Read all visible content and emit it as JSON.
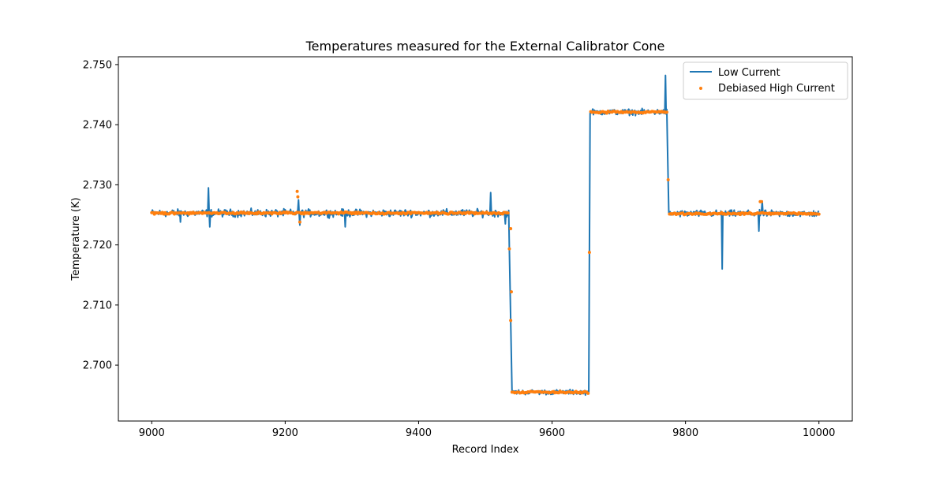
{
  "chart_data": {
    "type": "line",
    "title": "Temperatures measured for the External Calibrator Cone",
    "xlabel": "Record Index",
    "ylabel": "Temperature (K)",
    "xlim": [
      8950,
      10050
    ],
    "ylim": [
      2.6907,
      2.7513
    ],
    "xticks": [
      9000,
      9200,
      9400,
      9600,
      9800,
      10000
    ],
    "xtick_labels": [
      "9000",
      "9200",
      "9400",
      "9600",
      "9800",
      "10000"
    ],
    "yticks": [
      2.7,
      2.71,
      2.72,
      2.73,
      2.74,
      2.75
    ],
    "ytick_labels": [
      "2.700",
      "2.710",
      "2.720",
      "2.730",
      "2.740",
      "2.750"
    ],
    "grid": false,
    "legend_position": "top-right",
    "series": [
      {
        "name": "Low Current",
        "style": "line",
        "color": "#1f77b4",
        "generator": {
          "x_start": 9000,
          "x_end": 10000,
          "segments": [
            {
              "x0": 9000,
              "x1": 9535,
              "level": 2.7253,
              "noise": 0.0009
            },
            {
              "x0": 9535,
              "x1": 9540,
              "level_from": 2.7253,
              "level_to": 2.6955
            },
            {
              "x0": 9540,
              "x1": 9655,
              "level": 2.6955,
              "noise": 0.0006
            },
            {
              "x0": 9655,
              "x1": 9657,
              "level_from": 2.6955,
              "level_to": 2.742
            },
            {
              "x0": 9657,
              "x1": 9772,
              "level": 2.7421,
              "noise": 0.0007
            },
            {
              "x0": 9772,
              "x1": 9775,
              "level_from": 2.7421,
              "level_to": 2.7252
            },
            {
              "x0": 9775,
              "x1": 10000,
              "level": 2.7252,
              "noise": 0.0008
            }
          ],
          "spikes": [
            {
              "x": 9043,
              "y": 2.7238
            },
            {
              "x": 9085,
              "y": 2.7295
            },
            {
              "x": 9087,
              "y": 2.723
            },
            {
              "x": 9220,
              "y": 2.7275
            },
            {
              "x": 9222,
              "y": 2.7233
            },
            {
              "x": 9290,
              "y": 2.723
            },
            {
              "x": 9508,
              "y": 2.7287
            },
            {
              "x": 9530,
              "y": 2.7235
            },
            {
              "x": 9770,
              "y": 2.7482
            },
            {
              "x": 9855,
              "y": 2.716
            },
            {
              "x": 9910,
              "y": 2.7223
            },
            {
              "x": 9915,
              "y": 2.7273
            }
          ]
        }
      },
      {
        "name": "Debiased High Current",
        "style": "scatter",
        "color": "#ff7f0e",
        "generator": {
          "x_start": 9000,
          "x_end": 10000,
          "step": 2,
          "segments": [
            {
              "x0": 9000,
              "x1": 9535,
              "level": 2.7253,
              "noise": 0.0002
            },
            {
              "x0": 9535,
              "x1": 9540,
              "level_from": 2.7253,
              "level_to": 2.6955
            },
            {
              "x0": 9540,
              "x1": 9655,
              "level": 2.6955,
              "noise": 0.0002
            },
            {
              "x0": 9655,
              "x1": 9657,
              "level_from": 2.6955,
              "level_to": 2.742
            },
            {
              "x0": 9657,
              "x1": 9772,
              "level": 2.7421,
              "noise": 0.0002
            },
            {
              "x0": 9772,
              "x1": 9775,
              "level_from": 2.7421,
              "level_to": 2.7252
            },
            {
              "x0": 9775,
              "x1": 10000,
              "level": 2.7252,
              "noise": 0.0002
            }
          ],
          "extra_points": [
            {
              "x": 9218,
              "y": 2.7289
            },
            {
              "x": 9219,
              "y": 2.728
            },
            {
              "x": 9222,
              "y": 2.7238
            },
            {
              "x": 9538,
              "y": 2.7227
            },
            {
              "x": 9539,
              "y": 2.7122
            },
            {
              "x": 9912,
              "y": 2.7272
            },
            {
              "x": 9914,
              "y": 2.7272
            }
          ]
        }
      }
    ]
  }
}
